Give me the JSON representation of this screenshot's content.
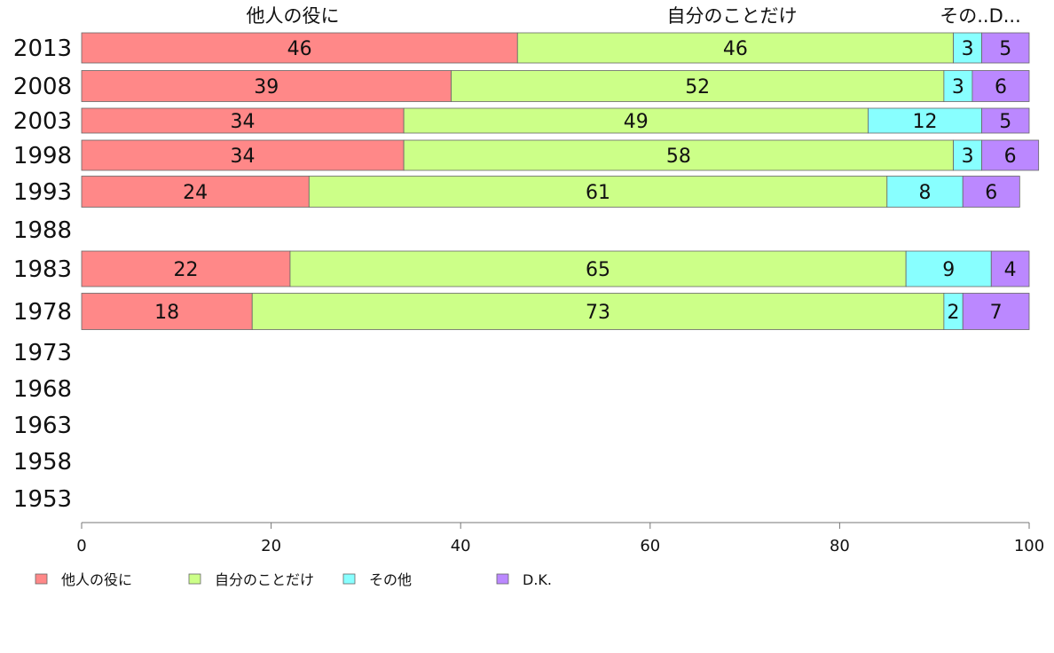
{
  "chart_data": {
    "type": "bar",
    "orientation": "horizontal",
    "stacked": true,
    "categories": [
      "2013",
      "2008",
      "2003",
      "1998",
      "1993",
      "1988",
      "1983",
      "1978",
      "1973",
      "1968",
      "1963",
      "1958",
      "1953"
    ],
    "series": [
      {
        "name": "他人の役に",
        "values": [
          46,
          39,
          34,
          34,
          24,
          null,
          22,
          18,
          null,
          null,
          null,
          null,
          null
        ],
        "color": "#ff8888"
      },
      {
        "name": "自分のことだけ",
        "values": [
          46,
          52,
          49,
          58,
          61,
          null,
          65,
          73,
          null,
          null,
          null,
          null,
          null
        ],
        "color": "#ccff88"
      },
      {
        "name": "その他",
        "values": [
          3,
          3,
          12,
          3,
          8,
          null,
          9,
          2,
          null,
          null,
          null,
          null,
          null
        ],
        "color": "#88ffff"
      },
      {
        "name": "D.K.",
        "values": [
          5,
          6,
          5,
          6,
          6,
          null,
          4,
          7,
          null,
          null,
          null,
          null,
          null
        ],
        "color": "#bb88ff"
      }
    ],
    "column_headers": [
      "他人の役に",
      "自分のことだけ",
      "その..D..."
    ],
    "xlim": [
      0,
      100
    ],
    "xticks": [
      0,
      20,
      40,
      60,
      80,
      100
    ],
    "legend_position": "bottom-left",
    "grid": false
  }
}
